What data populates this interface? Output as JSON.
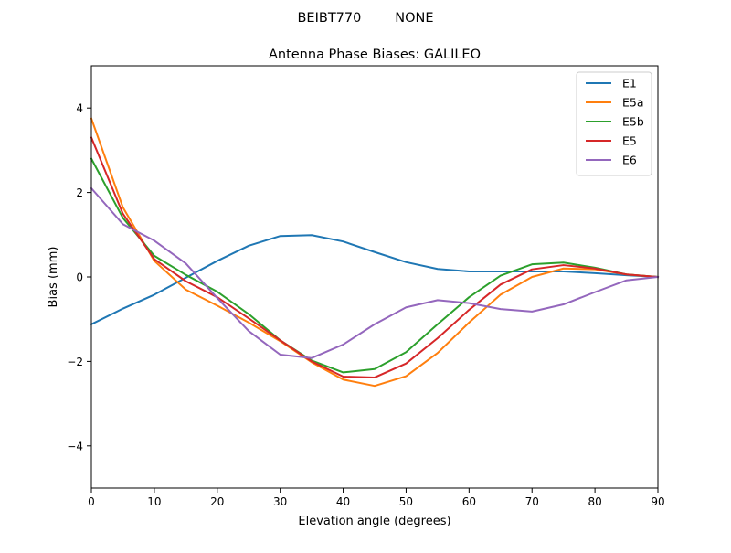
{
  "figure": {
    "suptitle": "BEIBT770        NONE"
  },
  "chart_data": {
    "type": "line",
    "title": "Antenna Phase Biases: GALILEO",
    "xlabel": "Elevation angle (degrees)",
    "ylabel": "Bias (mm)",
    "xlim": [
      0,
      90
    ],
    "ylim": [
      -5,
      5
    ],
    "xticks": [
      0,
      10,
      20,
      30,
      40,
      50,
      60,
      70,
      80,
      90
    ],
    "yticks": [
      -4,
      -2,
      0,
      2,
      4
    ],
    "grid": false,
    "legend_position": "top-right",
    "x": [
      0,
      5,
      10,
      15,
      20,
      25,
      30,
      35,
      40,
      45,
      50,
      55,
      60,
      65,
      70,
      75,
      80,
      85,
      90
    ],
    "series": [
      {
        "name": "E1",
        "color": "#1f77b4",
        "values": [
          -1.12,
          -0.75,
          -0.42,
          -0.02,
          0.38,
          0.74,
          0.97,
          0.99,
          0.84,
          0.59,
          0.35,
          0.19,
          0.13,
          0.13,
          0.13,
          0.13,
          0.09,
          0.04,
          0.0
        ]
      },
      {
        "name": "E5a",
        "color": "#ff7f0e",
        "values": [
          3.75,
          1.65,
          0.38,
          -0.3,
          -0.68,
          -1.08,
          -1.52,
          -2.02,
          -2.43,
          -2.58,
          -2.35,
          -1.8,
          -1.08,
          -0.42,
          0.0,
          0.2,
          0.18,
          0.06,
          0.0
        ]
      },
      {
        "name": "E5b",
        "color": "#2ca02c",
        "values": [
          2.8,
          1.4,
          0.5,
          0.05,
          -0.35,
          -0.88,
          -1.5,
          -1.98,
          -2.26,
          -2.18,
          -1.78,
          -1.12,
          -0.48,
          0.03,
          0.3,
          0.34,
          0.22,
          0.06,
          0.0
        ]
      },
      {
        "name": "E5",
        "color": "#d62728",
        "values": [
          3.3,
          1.5,
          0.42,
          -0.1,
          -0.48,
          -0.98,
          -1.5,
          -2.0,
          -2.36,
          -2.38,
          -2.05,
          -1.45,
          -0.78,
          -0.18,
          0.18,
          0.28,
          0.2,
          0.06,
          0.0
        ]
      },
      {
        "name": "E6",
        "color": "#9467bd",
        "values": [
          2.1,
          1.25,
          0.86,
          0.32,
          -0.5,
          -1.28,
          -1.84,
          -1.92,
          -1.6,
          -1.12,
          -0.72,
          -0.55,
          -0.62,
          -0.76,
          -0.82,
          -0.65,
          -0.36,
          -0.08,
          0.0
        ]
      }
    ]
  }
}
